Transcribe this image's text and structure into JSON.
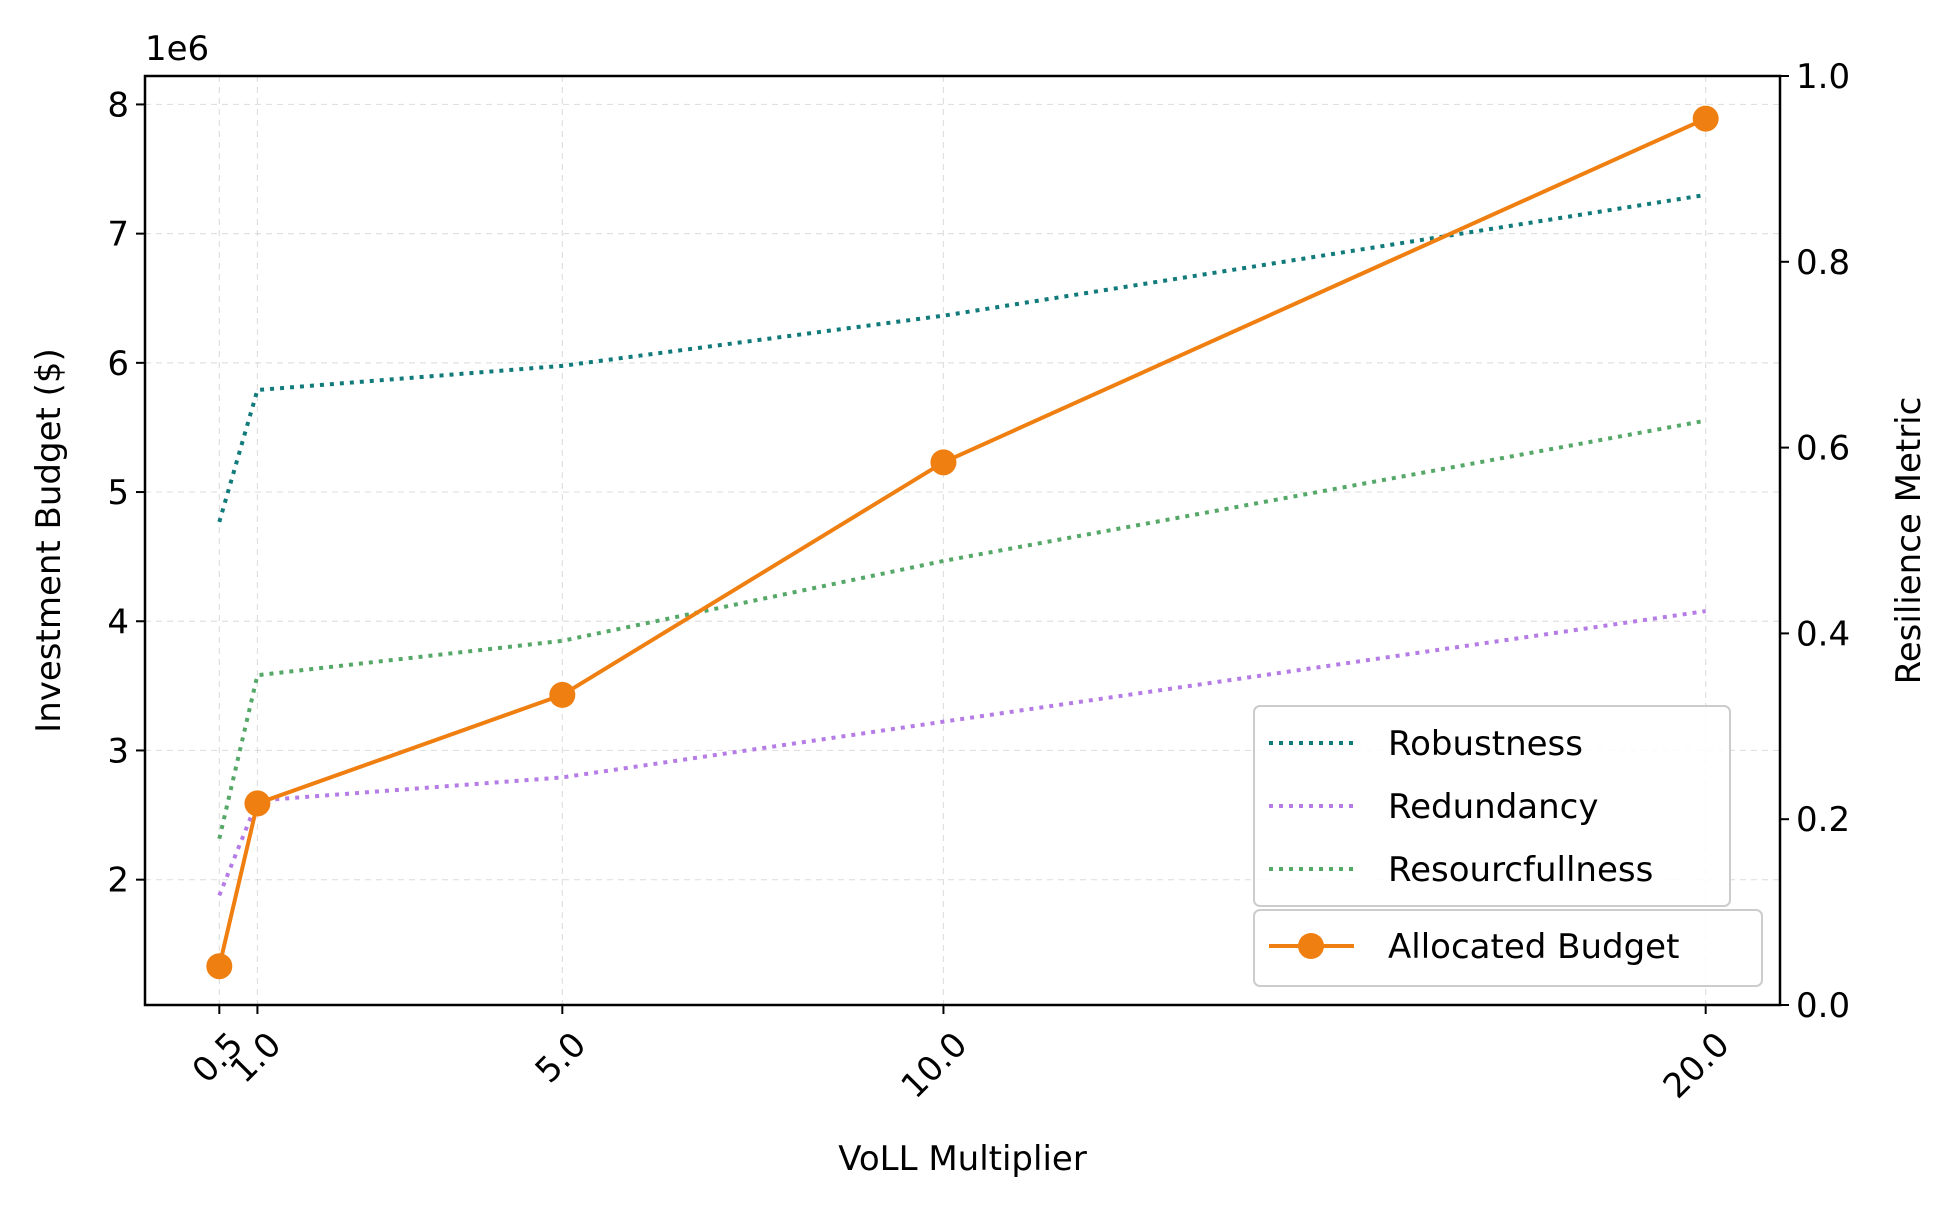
{
  "chart_data": {
    "type": "line",
    "xlabel": "VoLL Multiplier",
    "ylabel_left": "Investment Budget ($)",
    "ylabel_right": "Resilience Metric",
    "offset_text": "1e6",
    "x_ticks": [
      0.5,
      1.0,
      5.0,
      10.0,
      20.0
    ],
    "x_tick_labels": [
      "0.5",
      "1.0",
      "5.0",
      "10.0",
      "20.0"
    ],
    "xlim": [
      -0.475,
      20.975
    ],
    "y_left_ticks": [
      2,
      3,
      4,
      5,
      6,
      7,
      8
    ],
    "y_left_tick_labels": [
      "2",
      "3",
      "4",
      "5",
      "6",
      "7",
      "8"
    ],
    "y_left_scale": 1000000,
    "ylim_left": [
      1030000,
      8220000
    ],
    "y_right_ticks": [
      0.0,
      0.2,
      0.4,
      0.6,
      0.8,
      1.0
    ],
    "y_right_tick_labels": [
      "0.0",
      "0.2",
      "0.4",
      "0.6",
      "0.8",
      "1.0"
    ],
    "ylim_right": [
      0.0,
      1.0
    ],
    "grid": true,
    "legend_right_axis": {
      "placement": "lower-right",
      "entries": [
        "Robustness",
        "Redundancy",
        "Resourcfullness"
      ]
    },
    "legend_left_axis": {
      "placement": "lower-right",
      "entries": [
        "Allocated Budget"
      ]
    },
    "series": [
      {
        "name": "Robustness",
        "axis": "right",
        "style": "dotted",
        "color": "#117a7a",
        "x": [
          0.5,
          1.0,
          5.0,
          10.0,
          20.0
        ],
        "values": [
          0.52,
          0.662,
          0.688,
          0.742,
          0.872
        ]
      },
      {
        "name": "Redundancy",
        "axis": "right",
        "style": "dotted",
        "color": "#b57ce6",
        "x": [
          0.5,
          1.0,
          5.0,
          10.0,
          20.0
        ],
        "values": [
          0.118,
          0.22,
          0.245,
          0.305,
          0.424
        ]
      },
      {
        "name": "Resourcfullness",
        "axis": "right",
        "style": "dotted",
        "color": "#55a868",
        "x": [
          0.5,
          1.0,
          5.0,
          10.0,
          20.0
        ],
        "values": [
          0.179,
          0.355,
          0.392,
          0.478,
          0.629
        ]
      },
      {
        "name": "Allocated Budget",
        "axis": "left",
        "style": "solid-marker",
        "color": "#f07f11",
        "x": [
          0.5,
          1.0,
          5.0,
          10.0,
          20.0
        ],
        "values": [
          1330000,
          2590000,
          3430000,
          5230000,
          7890000
        ]
      }
    ]
  }
}
